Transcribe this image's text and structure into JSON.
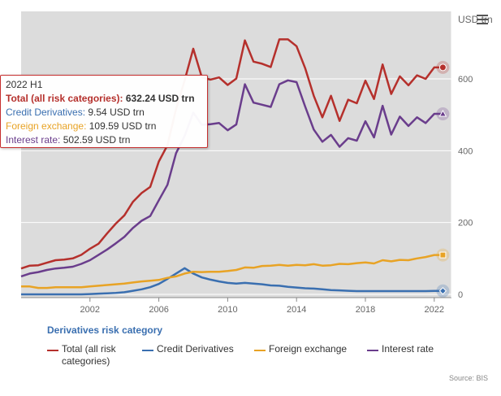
{
  "chart_data": {
    "type": "line",
    "xlabel": "",
    "ylabel": "USD trn",
    "ylim": [
      0,
      800
    ],
    "xlim": [
      1998,
      2023
    ],
    "x_ticks": [
      2002,
      2006,
      2010,
      2014,
      2018,
      2022
    ],
    "y_ticks": [
      0,
      200,
      400,
      600
    ],
    "grid": "horizontal",
    "x": [
      1998.0,
      1998.5,
      1999.0,
      1999.5,
      2000.0,
      2000.5,
      2001.0,
      2001.5,
      2002.0,
      2002.5,
      2003.0,
      2003.5,
      2004.0,
      2004.5,
      2005.0,
      2005.5,
      2006.0,
      2006.5,
      2007.0,
      2007.5,
      2008.0,
      2008.5,
      2009.0,
      2009.5,
      2010.0,
      2010.5,
      2011.0,
      2011.5,
      2012.0,
      2012.5,
      2013.0,
      2013.5,
      2014.0,
      2014.5,
      2015.0,
      2015.5,
      2016.0,
      2016.5,
      2017.0,
      2017.5,
      2018.0,
      2018.5,
      2019.0,
      2019.5,
      2020.0,
      2020.5,
      2021.0,
      2021.5,
      2022.0,
      2022.5
    ],
    "series": [
      {
        "name": "Total (all risk categories)",
        "color": "#b5302c",
        "values": [
          72,
          80,
          81,
          88,
          95,
          97,
          100,
          110,
          127,
          141,
          170,
          197,
          220,
          258,
          282,
          299,
          370,
          415,
          516,
          596,
          684,
          604,
          598,
          604,
          583,
          601,
          707,
          648,
          642,
          633,
          710,
          710,
          691,
          630,
          553,
          493,
          553,
          483,
          542,
          532,
          595,
          544,
          640,
          558,
          607,
          582,
          610,
          600,
          632,
          632
        ]
      },
      {
        "name": "Credit Derivatives",
        "color": "#3a6fb0",
        "values": [
          0,
          0,
          0,
          0,
          0,
          0,
          0,
          0,
          1,
          2,
          3,
          4,
          6,
          10,
          14,
          20,
          29,
          43,
          58,
          73,
          58,
          47,
          41,
          36,
          32,
          30,
          32,
          30,
          28,
          25,
          24,
          21,
          19,
          17,
          16,
          14,
          12,
          11,
          10,
          9,
          9,
          9,
          9,
          9,
          9,
          9,
          9,
          9,
          9.54,
          9.54
        ]
      },
      {
        "name": "Foreign exchange",
        "color": "#e8a325",
        "values": [
          22,
          22,
          18,
          18,
          20,
          20,
          20,
          20,
          22,
          24,
          26,
          28,
          30,
          33,
          36,
          38,
          40,
          46,
          50,
          58,
          63,
          62,
          63,
          63,
          65,
          68,
          75,
          74,
          79,
          80,
          82,
          80,
          82,
          81,
          84,
          80,
          81,
          85,
          84,
          87,
          89,
          86,
          95,
          92,
          96,
          95,
          100,
          104,
          109.59,
          109.59
        ]
      },
      {
        "name": "Interest rate",
        "color": "#6a3d8c",
        "values": [
          50,
          58,
          62,
          68,
          72,
          74,
          77,
          85,
          95,
          110,
          125,
          142,
          160,
          185,
          205,
          218,
          262,
          305,
          393,
          441,
          506,
          472,
          474,
          477,
          457,
          473,
          585,
          534,
          528,
          522,
          585,
          596,
          591,
          523,
          459,
          425,
          444,
          411,
          435,
          428,
          482,
          437,
          525,
          445,
          495,
          469,
          493,
          477,
          502.59,
          502.59
        ]
      }
    ]
  },
  "axis": {
    "x_ticks": [
      "2002",
      "2006",
      "2010",
      "2014",
      "2018",
      "2022"
    ],
    "y_ticks": [
      "0",
      "200",
      "400",
      "600"
    ],
    "y_unit": "USD trn"
  },
  "tooltip": {
    "title": "2022 H1",
    "rows": [
      {
        "label": "Total (all risk categories)",
        "value": "632.24 USD trn",
        "color": "#b5302c",
        "bold": true
      },
      {
        "label": "Credit Derivatives",
        "value": "9.54 USD trn",
        "color": "#3a6fb0",
        "bold": false
      },
      {
        "label": "Foreign exchange",
        "value": "109.59 USD trn",
        "color": "#e8a325",
        "bold": false
      },
      {
        "label": "Interest rate",
        "value": "502.59 USD trn",
        "color": "#6a3d8c",
        "bold": false
      }
    ]
  },
  "legend": {
    "title": "Derivatives risk category",
    "items": [
      {
        "line1": "Total (all risk",
        "line2": "categories)",
        "color": "#b5302c"
      },
      {
        "line1": "Credit Derivatives",
        "line2": "",
        "color": "#3a6fb0"
      },
      {
        "line1": "Foreign exchange",
        "line2": "",
        "color": "#e8a325"
      },
      {
        "line1": "Interest rate",
        "line2": "",
        "color": "#6a3d8c"
      }
    ]
  },
  "source": "Source: BIS",
  "menu_icon": "hamburger-menu-icon"
}
